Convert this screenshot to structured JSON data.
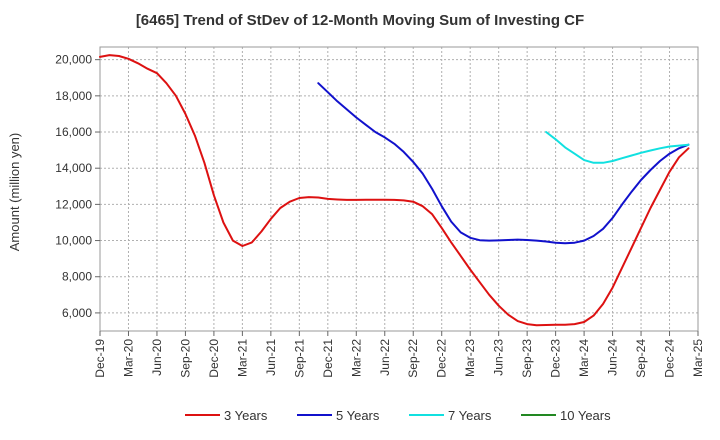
{
  "title": "[6465]  Trend of StDev of 12-Month Moving Sum of Investing CF",
  "chart_data": {
    "type": "line",
    "title": "[6465]  Trend of StDev of 12-Month Moving Sum of Investing CF",
    "xlabel": "",
    "ylabel": "Amount (million yen)",
    "x_tick_labels": [
      "Dec-19",
      "Mar-20",
      "Jun-20",
      "Sep-20",
      "Dec-20",
      "Mar-21",
      "Jun-21",
      "Sep-21",
      "Dec-21",
      "Mar-22",
      "Jun-22",
      "Sep-22",
      "Dec-22",
      "Mar-23",
      "Jun-23",
      "Sep-23",
      "Dec-23",
      "Mar-24",
      "Jun-24",
      "Sep-24",
      "Dec-24",
      "Mar-25"
    ],
    "y_ticks": [
      6000,
      8000,
      10000,
      12000,
      14000,
      16000,
      18000,
      20000
    ],
    "y_tick_labels": [
      "6,000",
      "8,000",
      "10,000",
      "12,000",
      "14,000",
      "16,000",
      "18,000",
      "20,000"
    ],
    "ylim": [
      5000,
      20700
    ],
    "grid": true,
    "legend_position": "bottom",
    "series": [
      {
        "name": "3 Years",
        "color": "#dd1111",
        "values": [
          [
            "2019-12",
            20150
          ],
          [
            "2020-01",
            20250
          ],
          [
            "2020-02",
            20200
          ],
          [
            "2020-03",
            20050
          ],
          [
            "2020-04",
            19800
          ],
          [
            "2020-05",
            19500
          ],
          [
            "2020-06",
            19250
          ],
          [
            "2020-07",
            18700
          ],
          [
            "2020-08",
            18000
          ],
          [
            "2020-09",
            17000
          ],
          [
            "2020-10",
            15800
          ],
          [
            "2020-11",
            14300
          ],
          [
            "2020-12",
            12500
          ],
          [
            "2021-01",
            11000
          ],
          [
            "2021-02",
            10000
          ],
          [
            "2021-03",
            9700
          ],
          [
            "2021-04",
            9900
          ],
          [
            "2021-05",
            10500
          ],
          [
            "2021-06",
            11200
          ],
          [
            "2021-07",
            11800
          ],
          [
            "2021-08",
            12150
          ],
          [
            "2021-09",
            12350
          ],
          [
            "2021-10",
            12400
          ],
          [
            "2021-11",
            12380
          ],
          [
            "2021-12",
            12300
          ],
          [
            "2022-01",
            12270
          ],
          [
            "2022-02",
            12250
          ],
          [
            "2022-03",
            12250
          ],
          [
            "2022-04",
            12260
          ],
          [
            "2022-05",
            12260
          ],
          [
            "2022-06",
            12260
          ],
          [
            "2022-07",
            12250
          ],
          [
            "2022-08",
            12220
          ],
          [
            "2022-09",
            12150
          ],
          [
            "2022-10",
            11900
          ],
          [
            "2022-11",
            11450
          ],
          [
            "2022-12",
            10700
          ],
          [
            "2023-01",
            9900
          ],
          [
            "2023-02",
            9150
          ],
          [
            "2023-03",
            8400
          ],
          [
            "2023-04",
            7700
          ],
          [
            "2023-05",
            7000
          ],
          [
            "2023-06",
            6400
          ],
          [
            "2023-07",
            5900
          ],
          [
            "2023-08",
            5550
          ],
          [
            "2023-09",
            5380
          ],
          [
            "2023-10",
            5320
          ],
          [
            "2023-11",
            5330
          ],
          [
            "2023-12",
            5350
          ],
          [
            "2024-01",
            5350
          ],
          [
            "2024-02",
            5380
          ],
          [
            "2024-03",
            5500
          ],
          [
            "2024-04",
            5850
          ],
          [
            "2024-05",
            6500
          ],
          [
            "2024-06",
            7400
          ],
          [
            "2024-07",
            8500
          ],
          [
            "2024-08",
            9600
          ],
          [
            "2024-09",
            10700
          ],
          [
            "2024-10",
            11800
          ],
          [
            "2024-11",
            12800
          ],
          [
            "2024-12",
            13800
          ],
          [
            "2025-01",
            14600
          ],
          [
            "2025-02",
            15100
          ]
        ]
      },
      {
        "name": "5 Years",
        "color": "#1111cc",
        "values": [
          [
            "2021-11",
            18700
          ],
          [
            "2021-12",
            18200
          ],
          [
            "2022-01",
            17700
          ],
          [
            "2022-02",
            17250
          ],
          [
            "2022-03",
            16800
          ],
          [
            "2022-04",
            16400
          ],
          [
            "2022-05",
            16000
          ],
          [
            "2022-06",
            15700
          ],
          [
            "2022-07",
            15350
          ],
          [
            "2022-08",
            14900
          ],
          [
            "2022-09",
            14350
          ],
          [
            "2022-10",
            13700
          ],
          [
            "2022-11",
            12850
          ],
          [
            "2022-12",
            11900
          ],
          [
            "2023-01",
            11050
          ],
          [
            "2023-02",
            10450
          ],
          [
            "2023-03",
            10150
          ],
          [
            "2023-04",
            10020
          ],
          [
            "2023-05",
            10000
          ],
          [
            "2023-06",
            10010
          ],
          [
            "2023-07",
            10030
          ],
          [
            "2023-08",
            10050
          ],
          [
            "2023-09",
            10030
          ],
          [
            "2023-10",
            10000
          ],
          [
            "2023-11",
            9950
          ],
          [
            "2023-12",
            9880
          ],
          [
            "2024-01",
            9850
          ],
          [
            "2024-02",
            9880
          ],
          [
            "2024-03",
            10000
          ],
          [
            "2024-04",
            10250
          ],
          [
            "2024-05",
            10650
          ],
          [
            "2024-06",
            11250
          ],
          [
            "2024-07",
            12000
          ],
          [
            "2024-08",
            12700
          ],
          [
            "2024-09",
            13350
          ],
          [
            "2024-10",
            13900
          ],
          [
            "2024-11",
            14400
          ],
          [
            "2024-12",
            14800
          ],
          [
            "2025-01",
            15100
          ],
          [
            "2025-02",
            15300
          ]
        ]
      },
      {
        "name": "7 Years",
        "color": "#11e0e0",
        "values": [
          [
            "2023-11",
            16000
          ],
          [
            "2023-12",
            15600
          ],
          [
            "2024-01",
            15150
          ],
          [
            "2024-02",
            14800
          ],
          [
            "2024-03",
            14450
          ],
          [
            "2024-04",
            14300
          ],
          [
            "2024-05",
            14300
          ],
          [
            "2024-06",
            14400
          ],
          [
            "2024-07",
            14550
          ],
          [
            "2024-08",
            14700
          ],
          [
            "2024-09",
            14850
          ],
          [
            "2024-10",
            14980
          ],
          [
            "2024-11",
            15100
          ],
          [
            "2024-12",
            15200
          ],
          [
            "2025-01",
            15250
          ],
          [
            "2025-02",
            15300
          ]
        ]
      },
      {
        "name": "10 Years",
        "color": "#228822",
        "values": []
      }
    ]
  }
}
